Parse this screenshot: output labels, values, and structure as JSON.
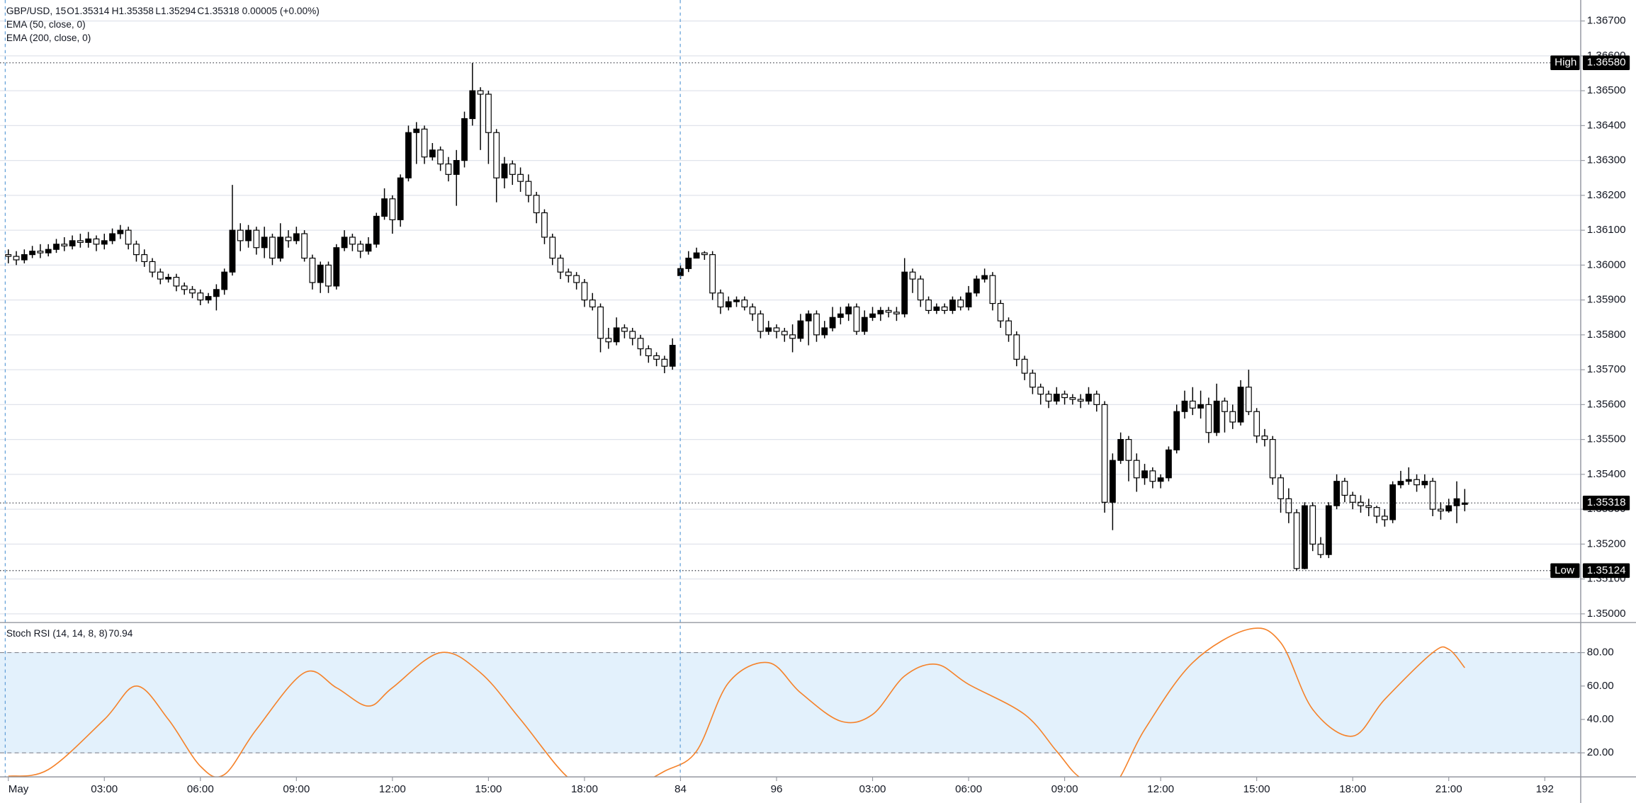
{
  "chart_data": [
    {
      "type": "candlestick",
      "header": {
        "symbol": "GBP/USD, 15",
        "open": "O1.35314",
        "high": "H1.35358",
        "low": "L1.35294",
        "close": "C1.35318",
        "change": "0.00005 (+0.00%)"
      },
      "indicators": [
        "EMA (50, close, 0)",
        "EMA (200, close, 0)"
      ],
      "up_color": "#000000",
      "down_color": "#ffffff",
      "border_color": "#000000",
      "x": [
        0,
        1,
        2,
        3,
        4,
        5,
        6,
        7,
        8,
        9,
        10,
        11,
        12,
        13,
        14,
        15,
        16,
        17,
        18,
        19,
        20,
        21,
        22,
        23,
        24,
        25,
        26,
        27,
        28,
        29,
        30,
        31,
        32,
        33,
        34,
        35,
        36,
        37,
        38,
        39,
        40,
        41,
        42,
        43,
        44,
        45,
        46,
        47,
        48,
        49,
        50,
        51,
        52,
        53,
        54,
        55,
        56,
        57,
        58,
        59,
        60,
        61,
        62,
        63,
        64,
        65,
        66,
        67,
        68,
        69,
        70,
        71,
        72,
        73,
        74,
        75,
        76,
        77,
        78,
        79,
        80,
        81,
        82,
        83,
        84,
        85,
        86,
        87,
        88,
        89,
        90,
        91,
        92,
        93,
        94,
        95,
        96,
        97,
        98,
        99,
        100,
        101,
        102,
        103,
        104,
        105,
        106,
        107,
        108,
        109,
        110,
        111,
        112,
        113,
        114,
        115,
        116,
        117,
        118,
        119,
        120,
        121,
        122,
        123,
        124,
        125,
        126,
        127,
        128,
        129,
        130,
        131,
        132,
        133,
        134,
        135,
        136,
        137,
        138,
        139,
        140,
        141,
        142,
        143,
        144,
        145,
        146,
        147,
        148,
        149,
        150,
        151,
        152,
        153,
        154,
        155,
        156,
        157,
        158,
        159,
        160,
        161,
        162,
        163,
        164,
        165,
        166,
        167,
        168,
        169,
        170,
        171,
        172,
        173,
        174,
        175,
        176,
        177,
        178,
        179,
        180,
        181,
        182
      ],
      "open": [
        1.3603,
        1.36025,
        1.36015,
        1.3603,
        1.3604,
        1.36035,
        1.36045,
        1.3606,
        1.36055,
        1.3607,
        1.36065,
        1.36075,
        1.3606,
        1.3607,
        1.3609,
        1.361,
        1.3606,
        1.3603,
        1.3601,
        1.3598,
        1.3596,
        1.35965,
        1.3594,
        1.3593,
        1.3592,
        1.359,
        1.3591,
        1.3593,
        1.3598,
        1.361,
        1.3607,
        1.361,
        1.3605,
        1.3608,
        1.3602,
        1.3608,
        1.3607,
        1.3609,
        1.3602,
        1.3595,
        1.36,
        1.3594,
        1.3605,
        1.3608,
        1.3606,
        1.3604,
        1.3606,
        1.3614,
        1.3619,
        1.3613,
        1.3625,
        1.3638,
        1.3639,
        1.3631,
        1.3633,
        1.3629,
        1.3626,
        1.363,
        1.3642,
        1.365,
        1.3649,
        1.3638,
        1.3625,
        1.3629,
        1.3626,
        1.3624,
        1.362,
        1.3615,
        1.3608,
        1.3602,
        1.3598,
        1.3597,
        1.3595,
        1.359,
        1.3588,
        1.3579,
        1.3578,
        1.3582,
        1.3581,
        1.3579,
        1.3576,
        1.3574,
        1.3573,
        1.3571,
        1.3597,
        1.3599,
        1.3602,
        1.36035,
        1.3603,
        1.3592,
        1.3588,
        1.35895,
        1.359,
        1.3588,
        1.3586,
        1.3581,
        1.3582,
        1.3581,
        1.358,
        1.3579,
        1.3584,
        1.3586,
        1.358,
        1.3582,
        1.3585,
        1.3586,
        1.3588,
        1.3581,
        1.3585,
        1.3586,
        1.3587,
        1.35865,
        1.3586,
        1.3598,
        1.3596,
        1.359,
        1.3587,
        1.3588,
        1.3587,
        1.359,
        1.3588,
        1.3592,
        1.3596,
        1.3597,
        1.3589,
        1.3584,
        1.358,
        1.3573,
        1.3569,
        1.3565,
        1.3563,
        1.3561,
        1.3563,
        1.3562,
        1.35615,
        1.3561,
        1.3563,
        1.356,
        1.3532,
        1.3544,
        1.355,
        1.3544,
        1.3539,
        1.3541,
        1.3538,
        1.3539,
        1.3547,
        1.3558,
        1.3561,
        1.3559,
        1.356,
        1.3552,
        1.3561,
        1.3558,
        1.3555,
        1.3565,
        1.3558,
        1.3551,
        1.355,
        1.3539,
        1.3533,
        1.3529,
        1.3513,
        1.3531,
        1.352,
        1.3517,
        1.3531,
        1.3538,
        1.3534,
        1.3532,
        1.3531,
        1.35305,
        1.3528,
        1.3527,
        1.3537,
        1.3538,
        1.35385,
        1.3537,
        1.3538,
        1.353,
        1.35295,
        1.3531,
        1.35314
      ],
      "high": [
        1.36045,
        1.3604,
        1.36045,
        1.36055,
        1.3606,
        1.3606,
        1.36075,
        1.3608,
        1.36085,
        1.3609,
        1.36095,
        1.36085,
        1.3609,
        1.36105,
        1.36115,
        1.3611,
        1.3607,
        1.36045,
        1.3602,
        1.3599,
        1.35975,
        1.35975,
        1.3595,
        1.3594,
        1.3593,
        1.3592,
        1.35945,
        1.3599,
        1.3623,
        1.3612,
        1.36115,
        1.3611,
        1.3611,
        1.3609,
        1.3612,
        1.361,
        1.3611,
        1.361,
        1.3603,
        1.3601,
        1.3601,
        1.3606,
        1.361,
        1.3609,
        1.3607,
        1.3608,
        1.3615,
        1.3622,
        1.362,
        1.3626,
        1.364,
        1.3641,
        1.364,
        1.3635,
        1.3634,
        1.3631,
        1.3633,
        1.3644,
        1.3658,
        1.3651,
        1.365,
        1.3639,
        1.3631,
        1.363,
        1.3628,
        1.3626,
        1.3621,
        1.3616,
        1.3609,
        1.3603,
        1.3599,
        1.3598,
        1.3596,
        1.3592,
        1.3589,
        1.3582,
        1.3585,
        1.3583,
        1.3582,
        1.358,
        1.3577,
        1.3575,
        1.3574,
        1.3579,
        1.36,
        1.3604,
        1.3605,
        1.3604,
        1.3604,
        1.3593,
        1.3591,
        1.3591,
        1.3591,
        1.3589,
        1.3587,
        1.3584,
        1.3583,
        1.3582,
        1.3583,
        1.3586,
        1.3587,
        1.3587,
        1.3584,
        1.3588,
        1.3588,
        1.3589,
        1.3589,
        1.3587,
        1.3588,
        1.3588,
        1.3588,
        1.3588,
        1.3602,
        1.3599,
        1.3597,
        1.3591,
        1.3589,
        1.3589,
        1.3591,
        1.3591,
        1.3594,
        1.3597,
        1.3599,
        1.3598,
        1.359,
        1.3585,
        1.3581,
        1.3574,
        1.357,
        1.3566,
        1.3564,
        1.3565,
        1.3564,
        1.3563,
        1.3563,
        1.3565,
        1.3564,
        1.3561,
        1.3546,
        1.3552,
        1.3551,
        1.3546,
        1.3543,
        1.3542,
        1.354,
        1.3548,
        1.356,
        1.3564,
        1.3565,
        1.3564,
        1.3562,
        1.3566,
        1.3562,
        1.356,
        1.3567,
        1.357,
        1.3559,
        1.3553,
        1.3551,
        1.354,
        1.3536,
        1.353,
        1.3532,
        1.3532,
        1.3522,
        1.3532,
        1.354,
        1.3539,
        1.3535,
        1.3534,
        1.3533,
        1.3531,
        1.353,
        1.3538,
        1.3541,
        1.3542,
        1.354,
        1.354,
        1.3539,
        1.3532,
        1.3533,
        1.3538,
        1.35358
      ],
      "low": [
        1.36005,
        1.36,
        1.36005,
        1.3602,
        1.3602,
        1.36025,
        1.36035,
        1.3604,
        1.36045,
        1.3605,
        1.3605,
        1.3604,
        1.36045,
        1.3606,
        1.36075,
        1.36045,
        1.3601,
        1.35995,
        1.35965,
        1.35945,
        1.3595,
        1.35925,
        1.35915,
        1.35905,
        1.35885,
        1.3589,
        1.3587,
        1.35915,
        1.3597,
        1.3604,
        1.3605,
        1.3603,
        1.3602,
        1.36,
        1.3601,
        1.3605,
        1.3606,
        1.3601,
        1.3593,
        1.3592,
        1.3592,
        1.3593,
        1.3604,
        1.3604,
        1.3602,
        1.3603,
        1.3605,
        1.3613,
        1.3609,
        1.3611,
        1.3624,
        1.3629,
        1.3629,
        1.363,
        1.3627,
        1.3624,
        1.3617,
        1.3628,
        1.364,
        1.3633,
        1.3629,
        1.3618,
        1.3622,
        1.3623,
        1.3621,
        1.3618,
        1.3612,
        1.3606,
        1.36,
        1.3596,
        1.3595,
        1.3593,
        1.3588,
        1.3587,
        1.3575,
        1.3576,
        1.3577,
        1.3579,
        1.3577,
        1.3574,
        1.3572,
        1.3571,
        1.3569,
        1.357,
        1.3596,
        1.3598,
        1.3602,
        1.36015,
        1.359,
        1.3586,
        1.3587,
        1.3588,
        1.3587,
        1.3584,
        1.3579,
        1.358,
        1.3579,
        1.3578,
        1.3575,
        1.3578,
        1.3577,
        1.3578,
        1.3579,
        1.3581,
        1.3583,
        1.3584,
        1.358,
        1.358,
        1.3584,
        1.3584,
        1.3585,
        1.3584,
        1.3585,
        1.3592,
        1.3588,
        1.3586,
        1.3586,
        1.3586,
        1.3586,
        1.3587,
        1.3587,
        1.3591,
        1.3595,
        1.3587,
        1.3582,
        1.3578,
        1.3571,
        1.3567,
        1.3563,
        1.356,
        1.3559,
        1.356,
        1.356,
        1.356,
        1.3559,
        1.356,
        1.3558,
        1.3529,
        1.3524,
        1.3543,
        1.3538,
        1.3535,
        1.3537,
        1.3536,
        1.3536,
        1.3538,
        1.3546,
        1.3556,
        1.3557,
        1.3556,
        1.3549,
        1.3551,
        1.3552,
        1.3553,
        1.3554,
        1.3557,
        1.3549,
        1.3548,
        1.3537,
        1.3529,
        1.3526,
        1.35124,
        1.35128,
        1.3518,
        1.3516,
        1.3516,
        1.353,
        1.3532,
        1.353,
        1.3529,
        1.3528,
        1.3526,
        1.3525,
        1.3526,
        1.3536,
        1.3537,
        1.3535,
        1.3536,
        1.3528,
        1.3527,
        1.3529,
        1.3526,
        1.35294
      ],
      "close": [
        1.36025,
        1.36015,
        1.3603,
        1.3604,
        1.36035,
        1.36045,
        1.3606,
        1.36055,
        1.3607,
        1.36065,
        1.36075,
        1.3606,
        1.3607,
        1.3609,
        1.361,
        1.3606,
        1.3603,
        1.3601,
        1.3598,
        1.3596,
        1.35965,
        1.3594,
        1.3593,
        1.3592,
        1.359,
        1.3591,
        1.3593,
        1.3598,
        1.361,
        1.3607,
        1.361,
        1.3605,
        1.3608,
        1.3602,
        1.3608,
        1.3607,
        1.3609,
        1.3602,
        1.3595,
        1.36,
        1.3594,
        1.3605,
        1.3608,
        1.3606,
        1.3604,
        1.3606,
        1.3614,
        1.3619,
        1.3613,
        1.3625,
        1.3638,
        1.3639,
        1.3631,
        1.3633,
        1.3629,
        1.3626,
        1.363,
        1.3642,
        1.365,
        1.3649,
        1.3638,
        1.3625,
        1.3629,
        1.3626,
        1.3624,
        1.362,
        1.3615,
        1.3608,
        1.3602,
        1.3598,
        1.3597,
        1.3595,
        1.359,
        1.3588,
        1.3579,
        1.3578,
        1.3582,
        1.3581,
        1.3579,
        1.3576,
        1.3574,
        1.3573,
        1.3571,
        1.3577,
        1.3599,
        1.3602,
        1.36035,
        1.3603,
        1.3592,
        1.3588,
        1.35895,
        1.359,
        1.3588,
        1.3586,
        1.3581,
        1.3582,
        1.3581,
        1.358,
        1.3579,
        1.3584,
        1.3586,
        1.358,
        1.3582,
        1.3585,
        1.3586,
        1.3588,
        1.3581,
        1.3585,
        1.3586,
        1.3587,
        1.35865,
        1.3586,
        1.3598,
        1.3596,
        1.359,
        1.3587,
        1.3588,
        1.3587,
        1.359,
        1.3588,
        1.3592,
        1.3596,
        1.3597,
        1.3589,
        1.3584,
        1.358,
        1.3573,
        1.3569,
        1.3565,
        1.3563,
        1.3561,
        1.3563,
        1.3562,
        1.35615,
        1.3561,
        1.3563,
        1.356,
        1.3532,
        1.3544,
        1.355,
        1.3544,
        1.3539,
        1.3541,
        1.3538,
        1.3539,
        1.3547,
        1.3558,
        1.3561,
        1.3559,
        1.356,
        1.3552,
        1.3561,
        1.3558,
        1.3555,
        1.3565,
        1.3558,
        1.3551,
        1.355,
        1.3539,
        1.3533,
        1.3529,
        1.3513,
        1.3531,
        1.352,
        1.3517,
        1.3531,
        1.3538,
        1.3534,
        1.3532,
        1.3531,
        1.35305,
        1.3528,
        1.3527,
        1.3537,
        1.3538,
        1.35385,
        1.3537,
        1.3538,
        1.353,
        1.35295,
        1.3531,
        1.3533,
        1.35318
      ],
      "xlim": [
        -1.04,
        196.49
      ],
      "ylim": [
        1.34975,
        1.3676
      ],
      "yticks": [
        {
          "value": 1.35,
          "label": "1.35000"
        },
        {
          "value": 1.351,
          "label": "1.35100"
        },
        {
          "value": 1.352,
          "label": "1.35200"
        },
        {
          "value": 1.353,
          "label": "1.35300"
        },
        {
          "value": 1.354,
          "label": "1.35400"
        },
        {
          "value": 1.355,
          "label": "1.35500"
        },
        {
          "value": 1.356,
          "label": "1.35600"
        },
        {
          "value": 1.357,
          "label": "1.35700"
        },
        {
          "value": 1.358,
          "label": "1.35800"
        },
        {
          "value": 1.359,
          "label": "1.35900"
        },
        {
          "value": 1.36,
          "label": "1.36000"
        },
        {
          "value": 1.361,
          "label": "1.36100"
        },
        {
          "value": 1.362,
          "label": "1.36200"
        },
        {
          "value": 1.363,
          "label": "1.36300"
        },
        {
          "value": 1.364,
          "label": "1.36400"
        },
        {
          "value": 1.365,
          "label": "1.36500"
        },
        {
          "value": 1.366,
          "label": "1.36600"
        },
        {
          "value": 1.367,
          "label": "1.36700"
        }
      ],
      "grid": true,
      "price_lines": [
        {
          "name": "High",
          "value": {
            "value": 1.3658,
            "label": "1.36580"
          }
        },
        {
          "name": "Low",
          "value": 1.35124
        },
        {
          "value": 1.35318
        }
      ]
    },
    {
      "type": "line",
      "title": "Stoch RSI (14, 14, 8, 8)",
      "color": "#f5822a",
      "band": [
        20,
        80
      ],
      "band_color": "#e3f1fc",
      "x": [
        0,
        5,
        12,
        16,
        20,
        24,
        27,
        31,
        37,
        41,
        45,
        48,
        54,
        59,
        64,
        70,
        74,
        78,
        82,
        86,
        90,
        95,
        99,
        104,
        108,
        112,
        116,
        120,
        127,
        131,
        134,
        138,
        142,
        148,
        155,
        159,
        163,
        168,
        172,
        178,
        180,
        182
      ],
      "values": [
        6,
        10,
        40,
        60,
        40,
        12,
        7,
        34,
        68,
        59,
        48,
        59,
        80,
        68,
        40,
        5,
        0,
        0,
        9,
        21,
        62,
        74,
        56,
        39,
        43,
        66,
        73,
        61,
        43,
        21,
        5,
        0,
        34,
        74,
        94,
        86,
        46,
        30,
        52,
        80,
        82,
        70.94
      ],
      "xlim": [
        -1.04,
        196.49
      ],
      "ylim": [
        5.6,
        98
      ],
      "yticks": [
        {
          "value": 20,
          "label": "20.00"
        },
        {
          "value": 40,
          "label": "40.00"
        },
        {
          "value": 60,
          "label": "60.00"
        },
        {
          "value": 80,
          "label": "80.00"
        }
      ],
      "grid": true,
      "xticks": [
        {
          "value": 0,
          "label": "May"
        },
        {
          "value": 12,
          "label": "03:00"
        },
        {
          "value": 24,
          "label": "06:00"
        },
        {
          "value": 36,
          "label": "09:00"
        },
        {
          "value": 48,
          "label": "12:00"
        },
        {
          "value": 60,
          "label": "15:00"
        },
        {
          "value": 72,
          "label": "18:00"
        },
        84,
        96,
        {
          "value": 108,
          "label": "03:00"
        },
        {
          "value": 120,
          "label": "06:00"
        },
        {
          "value": 132,
          "label": "09:00"
        },
        {
          "value": 144,
          "label": "12:00"
        },
        {
          "value": 156,
          "label": "15:00"
        },
        {
          "value": 168,
          "label": "18:00"
        },
        {
          "value": 180,
          "label": "21:00"
        },
        192
      ]
    }
  ]
}
